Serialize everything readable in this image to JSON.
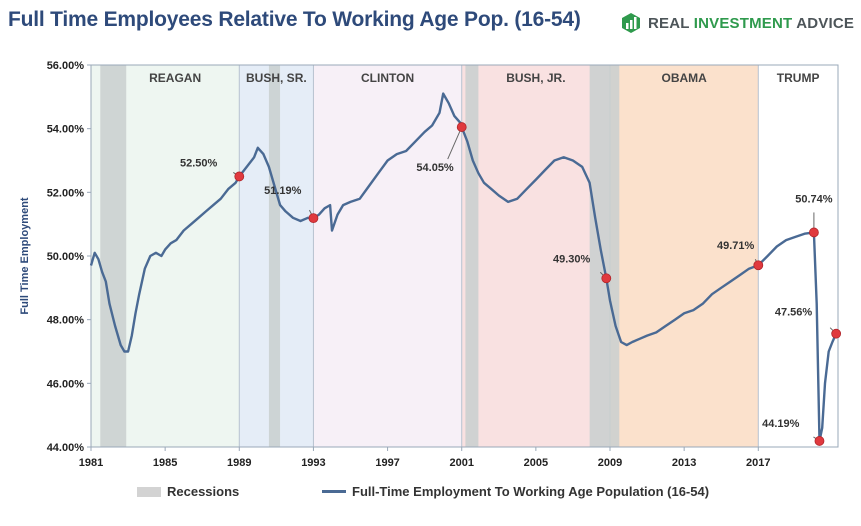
{
  "title": "Full Time Employees Relative To Working Age Pop. (16-54)",
  "brand": {
    "prefix": "REAL ",
    "highlight": "INVESTMENT",
    "suffix": " ADVICE",
    "icon": "bar-chart-logo-icon",
    "color": "#2f9a4d"
  },
  "legend": {
    "recessions": "Recessions",
    "series": "Full-Time Employment To Working Age Population (16-54)"
  },
  "colors": {
    "line": "#4a6a94",
    "marker": "#e0393e",
    "recession": "#c9cfcf",
    "axis": "#9aa8b8"
  },
  "chart_data": {
    "type": "line",
    "title": "Full Time Employees Relative To Working Age Pop. (16-54)",
    "ylabel": "Full Time Employment",
    "xlabel": "",
    "xlim": [
      1981,
      2021.3
    ],
    "ylim": [
      44,
      56
    ],
    "y_ticks": [
      44,
      46,
      48,
      50,
      52,
      54,
      56
    ],
    "y_tick_labels": [
      "44.00%",
      "46.00%",
      "48.00%",
      "50.00%",
      "52.00%",
      "54.00%",
      "56.00%"
    ],
    "x_ticks": [
      1981,
      1985,
      1989,
      1993,
      1997,
      2001,
      2005,
      2009,
      2013,
      2017
    ],
    "x_tick_labels": [
      "1981",
      "1985",
      "1989",
      "1993",
      "1997",
      "2001",
      "2005",
      "2009",
      "2013",
      "2017"
    ],
    "eras": [
      {
        "name": "REAGAN",
        "start": 1981,
        "end": 1989,
        "color": "#eef6f1"
      },
      {
        "name": "BUSH, SR.",
        "start": 1989,
        "end": 1993,
        "color": "#e5edf7"
      },
      {
        "name": "CLINTON",
        "start": 1993,
        "end": 2001,
        "color": "#f7f0f7"
      },
      {
        "name": "BUSH, JR.",
        "start": 2001,
        "end": 2009,
        "color": "#f9e1e1"
      },
      {
        "name": "OBAMA",
        "start": 2009,
        "end": 2017,
        "color": "#fbe1cc"
      },
      {
        "name": "TRUMP",
        "start": 2017,
        "end": 2021.3,
        "color": "#ffffff"
      }
    ],
    "recessions": [
      [
        1981.5,
        1982.9
      ],
      [
        1990.6,
        1991.2
      ],
      [
        2001.2,
        2001.9
      ],
      [
        2007.9,
        2009.5
      ]
    ],
    "series": [
      {
        "name": "Full-Time Employment To Working Age Population (16-54)",
        "x": [
          1981.0,
          1981.2,
          1981.4,
          1981.6,
          1981.8,
          1982.0,
          1982.3,
          1982.6,
          1982.8,
          1983.0,
          1983.2,
          1983.4,
          1983.6,
          1983.9,
          1984.2,
          1984.5,
          1984.8,
          1985.0,
          1985.3,
          1985.6,
          1986.0,
          1986.4,
          1986.8,
          1987.2,
          1987.6,
          1988.0,
          1988.4,
          1988.8,
          1989.0,
          1989.4,
          1989.8,
          1990.0,
          1990.3,
          1990.6,
          1990.9,
          1991.2,
          1991.5,
          1991.9,
          1992.3,
          1992.7,
          1993.0,
          1993.3,
          1993.6,
          1993.9,
          1994.0,
          1994.3,
          1994.6,
          1995.0,
          1995.5,
          1996.0,
          1996.5,
          1997.0,
          1997.5,
          1998.0,
          1998.5,
          1999.0,
          1999.4,
          1999.8,
          2000.0,
          2000.3,
          2000.6,
          2000.9,
          2001.0,
          2001.3,
          2001.6,
          2001.9,
          2002.2,
          2002.6,
          2003.0,
          2003.5,
          2004.0,
          2004.5,
          2005.0,
          2005.5,
          2006.0,
          2006.5,
          2007.0,
          2007.5,
          2007.9,
          2008.2,
          2008.5,
          2008.8,
          2009.0,
          2009.3,
          2009.6,
          2009.9,
          2010.2,
          2010.6,
          2011.0,
          2011.5,
          2012.0,
          2012.5,
          2013.0,
          2013.5,
          2014.0,
          2014.5,
          2015.0,
          2015.5,
          2016.0,
          2016.5,
          2017.0,
          2017.5,
          2018.0,
          2018.5,
          2019.0,
          2019.5,
          2020.0,
          2020.15,
          2020.3,
          2020.45,
          2020.6,
          2020.8,
          2021.0,
          2021.2
        ],
        "values": [
          49.7,
          50.1,
          49.9,
          49.5,
          49.2,
          48.5,
          47.8,
          47.2,
          47.0,
          47.0,
          47.5,
          48.2,
          48.8,
          49.6,
          50.0,
          50.1,
          50.0,
          50.2,
          50.4,
          50.5,
          50.8,
          51.0,
          51.2,
          51.4,
          51.6,
          51.8,
          52.1,
          52.3,
          52.5,
          52.8,
          53.1,
          53.4,
          53.2,
          52.8,
          52.2,
          51.6,
          51.4,
          51.2,
          51.1,
          51.2,
          51.19,
          51.3,
          51.5,
          51.6,
          50.8,
          51.3,
          51.6,
          51.7,
          51.8,
          52.2,
          52.6,
          53.0,
          53.2,
          53.3,
          53.6,
          53.9,
          54.1,
          54.5,
          55.1,
          54.8,
          54.4,
          54.2,
          54.05,
          53.6,
          53.0,
          52.6,
          52.3,
          52.1,
          51.9,
          51.7,
          51.8,
          52.1,
          52.4,
          52.7,
          53.0,
          53.1,
          53.0,
          52.8,
          52.3,
          51.2,
          50.2,
          49.3,
          48.6,
          47.8,
          47.3,
          47.2,
          47.3,
          47.4,
          47.5,
          47.6,
          47.8,
          48.0,
          48.2,
          48.3,
          48.5,
          48.8,
          49.0,
          49.2,
          49.4,
          49.6,
          49.71,
          50.0,
          50.3,
          50.5,
          50.6,
          50.7,
          50.74,
          48.5,
          44.19,
          44.6,
          46.0,
          47.0,
          47.3,
          47.56
        ]
      }
    ],
    "annotations": [
      {
        "label": "52.50%",
        "x": 1989.0,
        "y": 52.5
      },
      {
        "label": "51.19%",
        "x": 1993.0,
        "y": 51.19
      },
      {
        "label": "54.05%",
        "x": 2001.0,
        "y": 54.05
      },
      {
        "label": "49.30%",
        "x": 2008.8,
        "y": 49.3
      },
      {
        "label": "49.71%",
        "x": 2017.0,
        "y": 49.71
      },
      {
        "label": "50.74%",
        "x": 2020.0,
        "y": 50.74
      },
      {
        "label": "47.56%",
        "x": 2021.2,
        "y": 47.56
      },
      {
        "label": "44.19%",
        "x": 2020.3,
        "y": 44.19
      }
    ]
  }
}
